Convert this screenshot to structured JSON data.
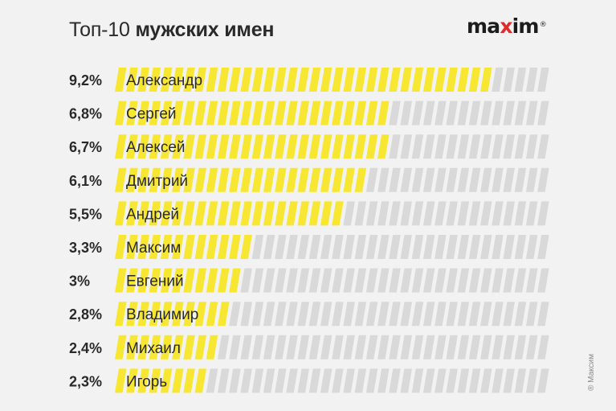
{
  "header": {
    "title_light": "Топ-10",
    "title_bold": "мужских имен",
    "logo_pre": "ma",
    "logo_x": "x",
    "logo_post": "im",
    "logo_reg": "®"
  },
  "copyright": "® Максим",
  "colors": {
    "background": "#f2f2f2",
    "filled": "#f7e733",
    "empty": "#d9d9d9",
    "logo_accent": "#e32b2b",
    "text": "#2a2a2a"
  },
  "chart_data": {
    "type": "bar",
    "orientation": "horizontal",
    "title": "Топ-10 мужских имен",
    "categories": [
      "Александр",
      "Сергей",
      "Алексей",
      "Дмитрий",
      "Андрей",
      "Максим",
      "Евгений",
      "Владимир",
      "Михаил",
      "Игорь"
    ],
    "value_labels": [
      "9,2%",
      "6,8%",
      "6,7%",
      "6,1%",
      "5,5%",
      "3,3%",
      "3%",
      "2,8%",
      "2,4%",
      "2,3%"
    ],
    "values": [
      9.2,
      6.8,
      6.7,
      6.1,
      5.5,
      3.3,
      3.0,
      2.8,
      2.4,
      2.3
    ],
    "unit": "%",
    "xlabel": "",
    "ylabel": ""
  }
}
